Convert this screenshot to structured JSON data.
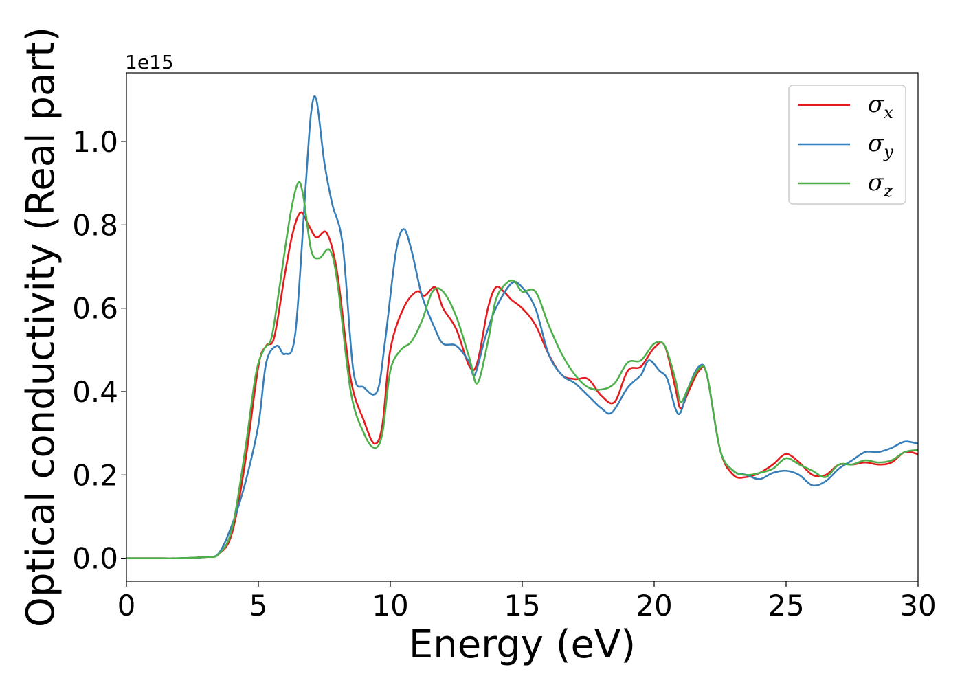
{
  "chart_data": {
    "type": "line",
    "xlabel": "Energy (eV)",
    "ylabel": "Optical conductivity (Real part)",
    "y_offset_label": "1e15",
    "xlim": [
      0,
      30
    ],
    "ylim": [
      -0.055,
      1.165
    ],
    "xticks": [
      0,
      5,
      10,
      15,
      20,
      25,
      30
    ],
    "xtick_labels": [
      "0",
      "5",
      "10",
      "15",
      "20",
      "25",
      "30"
    ],
    "yticks": [
      0.0,
      0.2,
      0.4,
      0.6,
      0.8,
      1.0
    ],
    "ytick_labels": [
      "0.0",
      "0.2",
      "0.4",
      "0.6",
      "0.8",
      "1.0"
    ],
    "grid": false,
    "legend_position": "top-right",
    "series": [
      {
        "name": "σx",
        "name_base": "σ",
        "name_sub": "x",
        "color": "#e41a1c",
        "x": [
          0,
          1,
          2,
          3,
          3.5,
          4,
          4.5,
          5,
          5.3,
          5.6,
          6,
          6.3,
          6.6,
          6.9,
          7.2,
          7.6,
          8,
          8.5,
          9,
          9.4,
          9.7,
          10,
          10.5,
          11,
          11.3,
          11.7,
          12,
          12.5,
          13,
          13.3,
          13.7,
          14,
          14.3,
          14.6,
          15,
          15.5,
          16,
          16.5,
          17,
          17.5,
          18,
          18.5,
          19,
          19.5,
          20,
          20.4,
          20.8,
          21,
          21.3,
          21.7,
          22,
          22.5,
          23,
          23.5,
          24,
          24.5,
          25,
          25.5,
          26,
          26.5,
          27,
          27.5,
          28,
          28.5,
          29,
          29.5,
          30
        ],
        "y": [
          0.0,
          0.0,
          0.0,
          0.003,
          0.01,
          0.06,
          0.23,
          0.46,
          0.51,
          0.53,
          0.68,
          0.78,
          0.83,
          0.8,
          0.77,
          0.78,
          0.68,
          0.43,
          0.33,
          0.275,
          0.32,
          0.5,
          0.6,
          0.64,
          0.63,
          0.65,
          0.6,
          0.55,
          0.46,
          0.47,
          0.6,
          0.65,
          0.64,
          0.62,
          0.6,
          0.56,
          0.49,
          0.44,
          0.43,
          0.43,
          0.39,
          0.375,
          0.45,
          0.46,
          0.505,
          0.51,
          0.41,
          0.36,
          0.4,
          0.45,
          0.44,
          0.26,
          0.2,
          0.195,
          0.205,
          0.225,
          0.25,
          0.23,
          0.2,
          0.2,
          0.225,
          0.225,
          0.23,
          0.225,
          0.23,
          0.255,
          0.25
        ]
      },
      {
        "name": "σy",
        "name_base": "σ",
        "name_sub": "y",
        "color": "#377eb8",
        "x": [
          0,
          1,
          2,
          3,
          3.5,
          4,
          4.5,
          5,
          5.3,
          5.7,
          6,
          6.4,
          6.8,
          7.0,
          7.2,
          7.5,
          7.8,
          8.2,
          8.6,
          9.0,
          9.5,
          9.8,
          10.2,
          10.5,
          10.8,
          11.2,
          11.7,
          12.0,
          12.5,
          13.0,
          13.2,
          13.6,
          14.0,
          14.6,
          15.0,
          15.5,
          16.0,
          16.5,
          17.0,
          17.5,
          18.0,
          18.4,
          19.0,
          19.5,
          19.8,
          20.2,
          20.5,
          20.8,
          21.0,
          21.3,
          21.7,
          22.0,
          22.5,
          23.0,
          23.5,
          24.0,
          24.5,
          25.0,
          25.5,
          26.0,
          26.5,
          27.0,
          27.5,
          28.0,
          28.5,
          29.0,
          29.5,
          30.0
        ],
        "y": [
          0.0,
          0.0,
          0.0,
          0.003,
          0.012,
          0.08,
          0.18,
          0.32,
          0.47,
          0.51,
          0.49,
          0.54,
          0.9,
          1.07,
          1.1,
          0.95,
          0.85,
          0.75,
          0.45,
          0.41,
          0.4,
          0.52,
          0.73,
          0.79,
          0.74,
          0.63,
          0.55,
          0.515,
          0.51,
          0.47,
          0.44,
          0.53,
          0.6,
          0.66,
          0.65,
          0.6,
          0.49,
          0.44,
          0.42,
          0.39,
          0.36,
          0.35,
          0.41,
          0.44,
          0.475,
          0.45,
          0.43,
          0.36,
          0.35,
          0.41,
          0.46,
          0.44,
          0.26,
          0.21,
          0.2,
          0.19,
          0.205,
          0.21,
          0.2,
          0.175,
          0.185,
          0.215,
          0.235,
          0.255,
          0.255,
          0.265,
          0.28,
          0.275
        ]
      },
      {
        "name": "σz",
        "name_base": "σ",
        "name_sub": "z",
        "color": "#4daf4a",
        "x": [
          0,
          1,
          2,
          3,
          3.5,
          4,
          4.5,
          4.9,
          5.2,
          5.5,
          5.8,
          6.2,
          6.5,
          6.7,
          7.0,
          7.3,
          7.7,
          8.0,
          8.5,
          9.0,
          9.4,
          9.7,
          10.0,
          10.4,
          10.8,
          11.2,
          11.6,
          12.0,
          12.5,
          13.0,
          13.3,
          13.7,
          14.0,
          14.4,
          14.7,
          15.0,
          15.5,
          16.0,
          16.5,
          17.0,
          17.5,
          18.0,
          18.5,
          19.0,
          19.5,
          20.0,
          20.4,
          20.8,
          21.0,
          21.3,
          21.7,
          22.0,
          22.5,
          23.0,
          23.5,
          24.0,
          24.5,
          25.0,
          25.5,
          26.0,
          26.5,
          27.0,
          27.5,
          28.0,
          28.5,
          29.0,
          29.5,
          30.0
        ],
        "y": [
          0.0,
          0.0,
          0.0,
          0.003,
          0.01,
          0.07,
          0.26,
          0.44,
          0.5,
          0.53,
          0.65,
          0.82,
          0.9,
          0.87,
          0.74,
          0.72,
          0.74,
          0.66,
          0.4,
          0.3,
          0.265,
          0.3,
          0.45,
          0.5,
          0.52,
          0.57,
          0.64,
          0.64,
          0.58,
          0.48,
          0.42,
          0.52,
          0.62,
          0.66,
          0.665,
          0.64,
          0.64,
          0.56,
          0.49,
          0.44,
          0.41,
          0.405,
          0.42,
          0.47,
          0.475,
          0.515,
          0.51,
          0.43,
          0.375,
          0.41,
          0.455,
          0.44,
          0.26,
          0.21,
          0.2,
          0.205,
          0.215,
          0.24,
          0.225,
          0.21,
          0.195,
          0.225,
          0.225,
          0.235,
          0.23,
          0.235,
          0.255,
          0.26
        ]
      }
    ]
  }
}
